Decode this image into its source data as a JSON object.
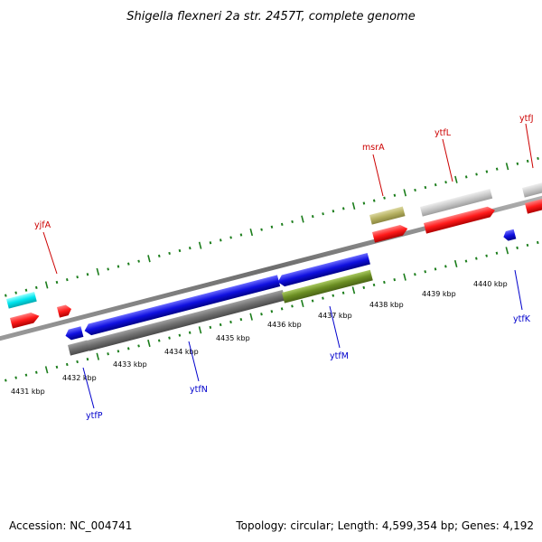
{
  "title": "Shigella flexneri 2a str. 2457T, complete genome",
  "footer": {
    "accession": "Accession: NC_004741",
    "summary": "Topology: circular; Length: 4,599,354 bp; Genes: 4,192"
  },
  "colors": {
    "backbone": "#808080",
    "tick": "#1b7d1b",
    "top_label": "#cc0000",
    "bottom_label": "#0000cc",
    "cyan_box": "#00e5ee",
    "red_feature": "#ff1a1a",
    "blue_feature": "#1010e0",
    "olive_box": "#b5b060",
    "light_gray_box": "#c8c8c8",
    "dark_gray_box": "#707070",
    "olive_green_box": "#6b8e23"
  },
  "kbp_labels": [
    "4431 kbp",
    "4432 kbp",
    "4433 kbp",
    "4434 kbp",
    "4435 kbp",
    "4436 kbp",
    "4437 kbp",
    "4438 kbp",
    "4439 kbp",
    "4440 kbp"
  ],
  "top_genes": [
    "yjfA",
    "msrA",
    "ytfL",
    "ytfJ"
  ],
  "bottom_genes": [
    "ytfP",
    "ytfN",
    "ytfM",
    "ytfK"
  ]
}
